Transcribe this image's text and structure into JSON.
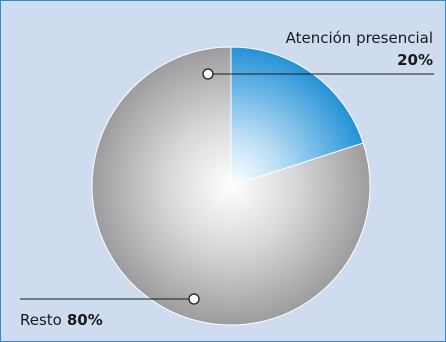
{
  "colors": {
    "background": "#cfdcf0",
    "border": "#2a8fd0",
    "slice_blue": "#1f8fd6",
    "slice_gray": "#a9a9ab"
  },
  "chart_data": {
    "type": "pie",
    "legend": "none",
    "slices": [
      {
        "label": "Atención presencial",
        "value": 20,
        "value_label": "20%"
      },
      {
        "label": "Resto",
        "value": 80,
        "value_label": "80%"
      }
    ]
  }
}
